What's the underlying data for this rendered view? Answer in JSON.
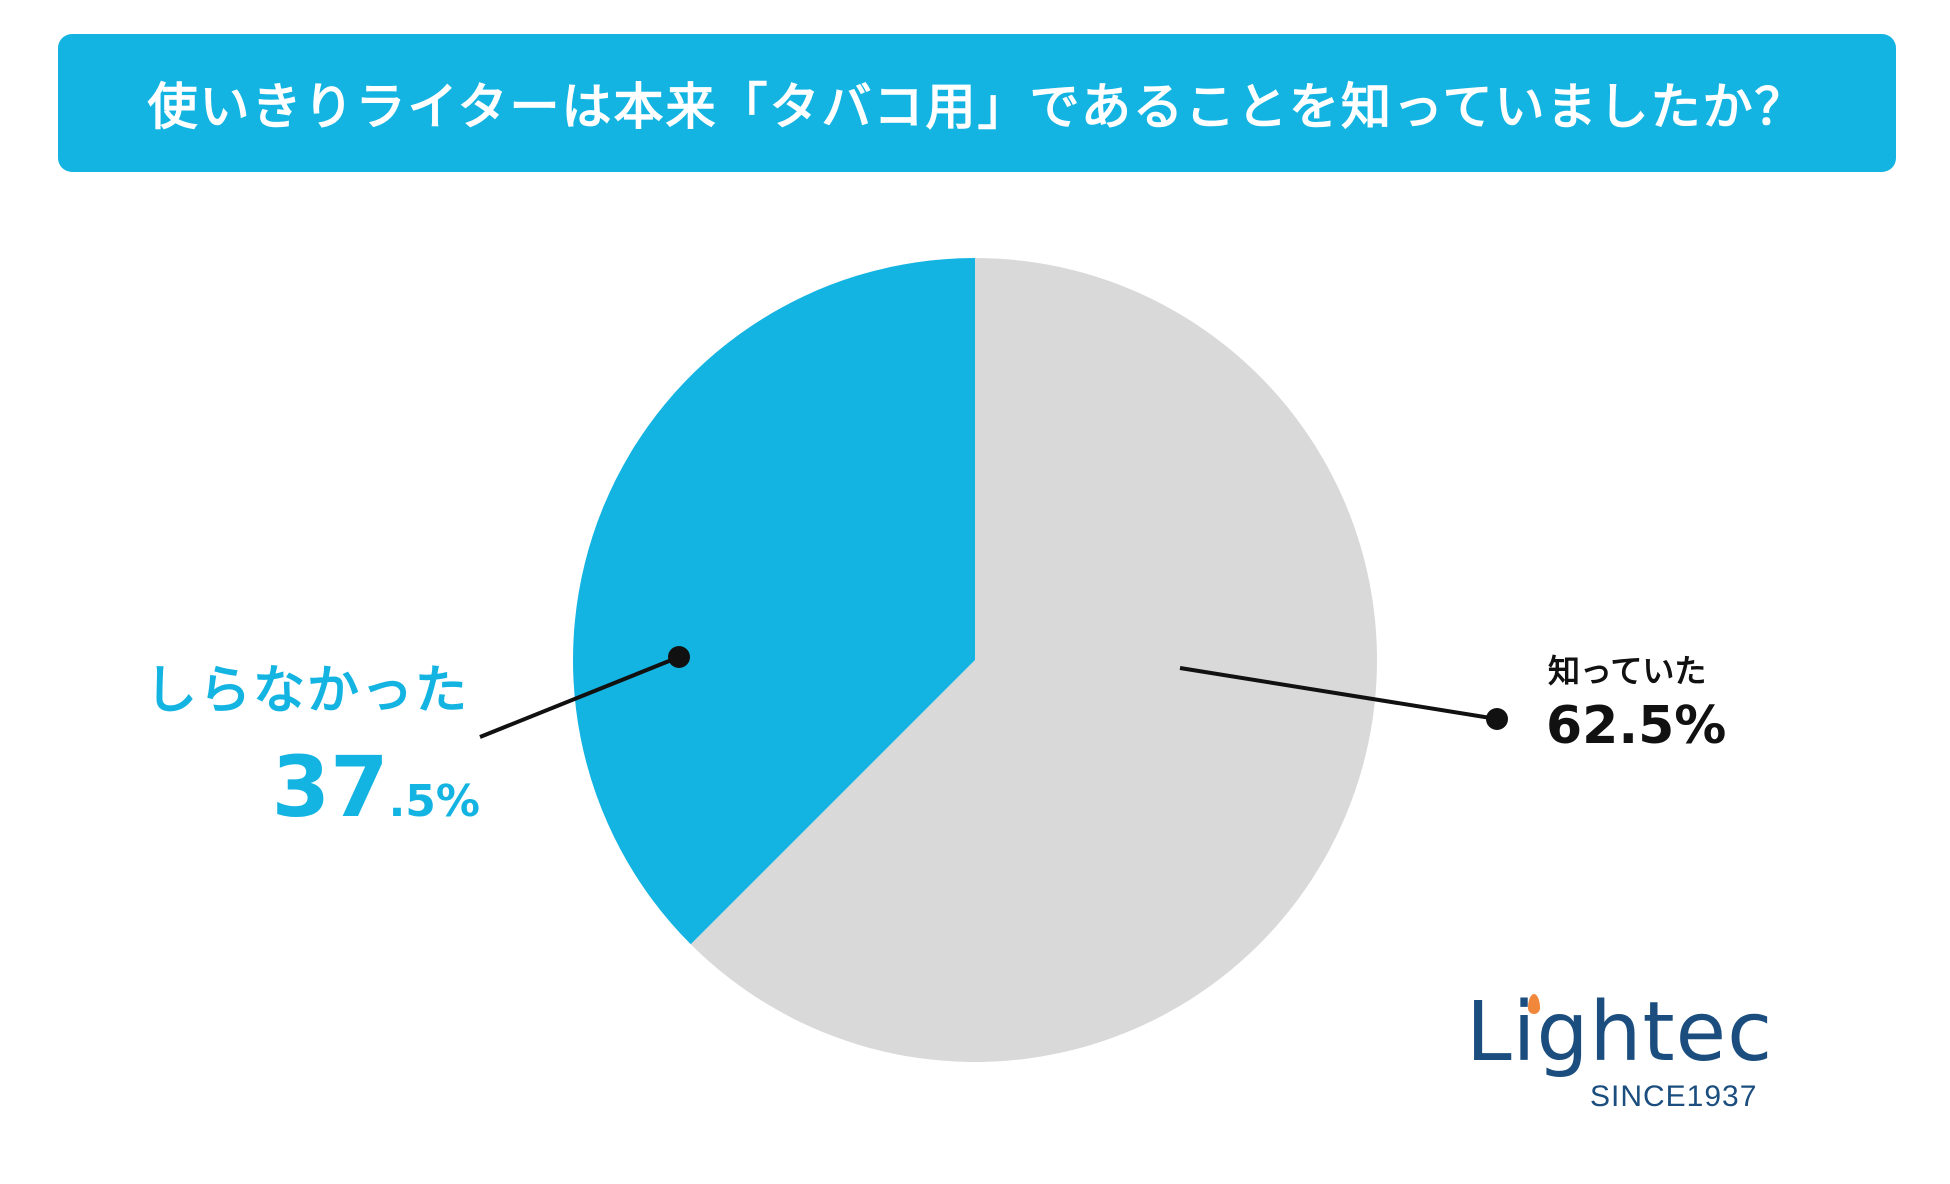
{
  "title": "使いきりライターは本来「タバコ用」であることを知っていましたか？",
  "colors": {
    "accent": "#14b4e2",
    "gray_slice": "#d9d9d9",
    "text_dark": "#111111",
    "logo_blue": "#1b4e7e",
    "logo_flame": "#f0873a"
  },
  "chart_data": {
    "type": "pie",
    "title": "使いきりライターは本来「タバコ用」であることを知っていましたか？",
    "slices": [
      {
        "label": "知っていた",
        "value": 62.5,
        "value_label": "62.5%",
        "color": "#d9d9d9"
      },
      {
        "label": "しらなかった",
        "value": 37.5,
        "value_label_big": "37",
        "value_label_small": ".5%",
        "color": "#14b4e2"
      }
    ]
  },
  "logo": {
    "name": "Lightec",
    "tagline": "SINCE1937"
  }
}
